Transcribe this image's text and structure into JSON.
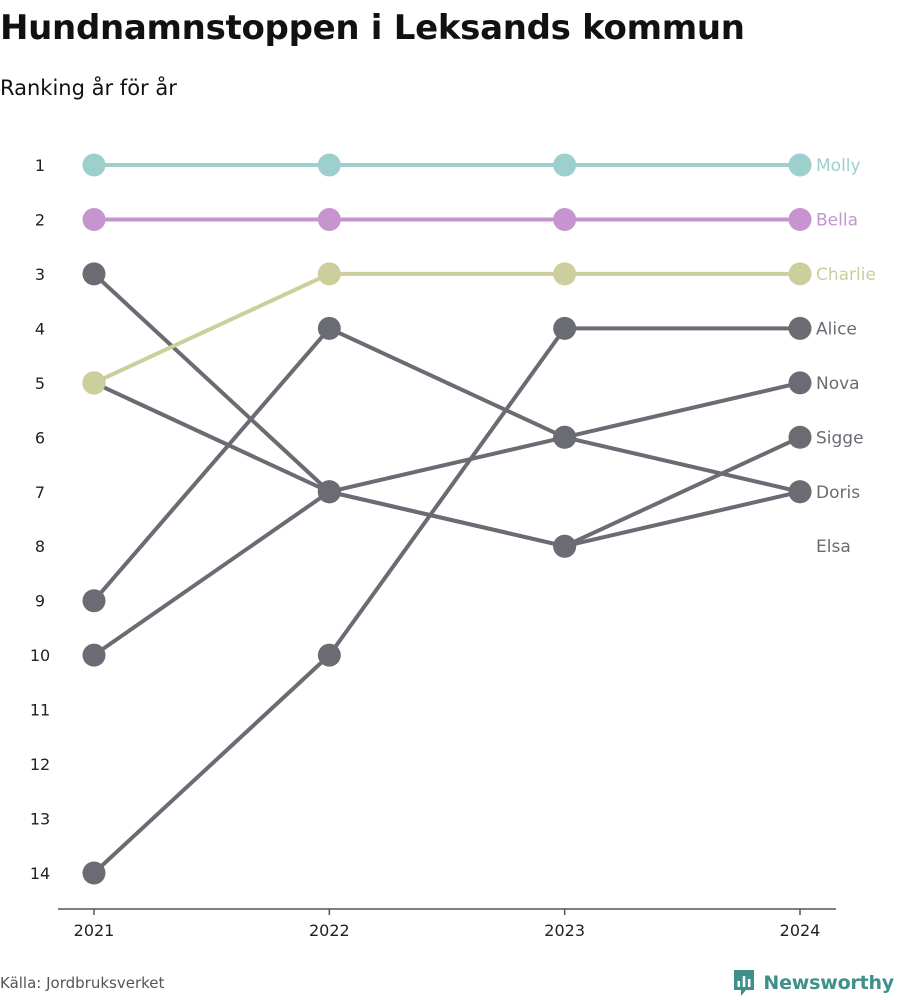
{
  "title": "Hundnamnstoppen i Leksands kommun",
  "subtitle": "Ranking år för år",
  "source": "Källa: Jordbruksverket",
  "brand": {
    "name": "Newsworthy",
    "icon": "newsworthy-logo-icon",
    "color": "#3f8f8a"
  },
  "colors": {
    "Molly": "#9dcfcc",
    "Bella": "#c694cf",
    "Charlie": "#ccce9c",
    "other": "#6b6b73",
    "axis": "#555555"
  },
  "chart_data": {
    "type": "line",
    "title": "Hundnamnstoppen i Leksands kommun",
    "subtitle": "Ranking år för år",
    "x": [
      "2021",
      "2022",
      "2023",
      "2024"
    ],
    "yticks": [
      1,
      2,
      3,
      4,
      5,
      6,
      7,
      8,
      9,
      10,
      11,
      12,
      13,
      14
    ],
    "ylim": [
      1,
      14
    ],
    "y_reversed": true,
    "grid": false,
    "series": [
      {
        "name": "Molly",
        "values": [
          1,
          1,
          1,
          1
        ],
        "color": "#9dcfcc"
      },
      {
        "name": "Bella",
        "values": [
          2,
          2,
          2,
          2
        ],
        "color": "#c694cf"
      },
      {
        "name": "Charlie",
        "values": [
          5,
          3,
          3,
          3
        ],
        "color": "#ccce9c"
      },
      {
        "name": "Alice",
        "values": [
          14,
          10,
          4,
          4
        ],
        "color": "#6b6b73"
      },
      {
        "name": "Nova",
        "values": [
          10,
          7,
          6,
          5
        ],
        "color": "#6b6b73"
      },
      {
        "name": "Sigge",
        "values": [
          5,
          7,
          8,
          6
        ],
        "color": "#6b6b73"
      },
      {
        "name": "Doris",
        "values": [
          3,
          7,
          8,
          7
        ],
        "color": "#6b6b73"
      },
      {
        "name": "Elsa",
        "values": [
          9,
          4,
          6,
          7
        ],
        "color": "#6b6b73"
      }
    ],
    "end_labels": [
      {
        "text": "Molly",
        "rank": 1,
        "color": "#9dcfcc"
      },
      {
        "text": "Bella",
        "rank": 2,
        "color": "#c694cf"
      },
      {
        "text": "Charlie",
        "rank": 3,
        "color": "#ccce9c"
      },
      {
        "text": "Alice",
        "rank": 4,
        "color": "#6b6b73"
      },
      {
        "text": "Nova",
        "rank": 5,
        "color": "#6b6b73"
      },
      {
        "text": "Sigge",
        "rank": 6,
        "color": "#6b6b73"
      },
      {
        "text": "Doris",
        "rank": 7,
        "color": "#6b6b73"
      },
      {
        "text": "Elsa",
        "rank": 8,
        "color": "#6b6b73"
      }
    ]
  }
}
